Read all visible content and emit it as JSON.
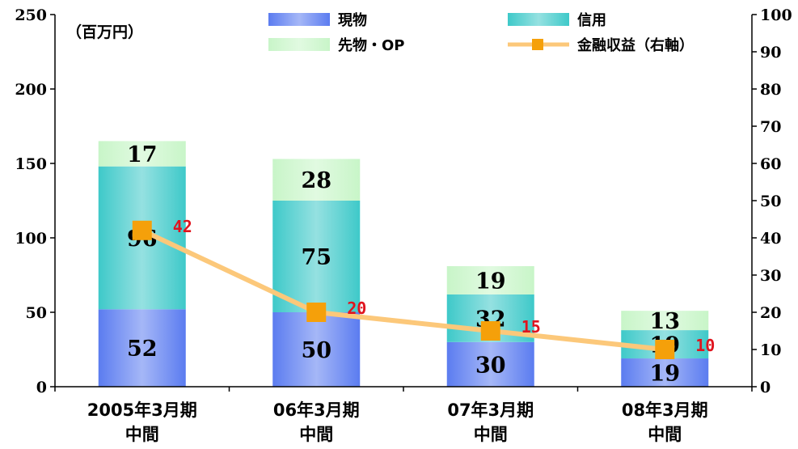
{
  "chart_data": {
    "type": "bar",
    "stacked": true,
    "unit_label": "（百万円）",
    "categories": [
      [
        "2005年3月期",
        "中間"
      ],
      [
        "06年3月期",
        "中間"
      ],
      [
        "07年3月期",
        "中間"
      ],
      [
        "08年3月期",
        "中間"
      ]
    ],
    "series": [
      {
        "name": "現物",
        "values": [
          52,
          50,
          30,
          19
        ],
        "color": "#5b7cf0"
      },
      {
        "name": "信用",
        "values": [
          96,
          75,
          32,
          19
        ],
        "color": "#3ec9c9"
      },
      {
        "name": "先物・OP",
        "values": [
          17,
          28,
          19,
          13
        ],
        "color": "#c8f5c8"
      }
    ],
    "line_series": {
      "name": "金融収益（右軸）",
      "values": [
        42,
        20,
        15,
        10
      ],
      "color": "#fcc87a",
      "marker_color": "#f5a00a",
      "label_color": "#e0141e"
    },
    "ylim_left": [
      0,
      250
    ],
    "yticks_left": [
      0,
      50,
      100,
      150,
      200,
      250
    ],
    "ylim_right": [
      0,
      100
    ],
    "yticks_right": [
      0,
      10,
      20,
      30,
      40,
      50,
      60,
      70,
      80,
      90,
      100
    ],
    "grid": false,
    "legend_position": "top"
  }
}
